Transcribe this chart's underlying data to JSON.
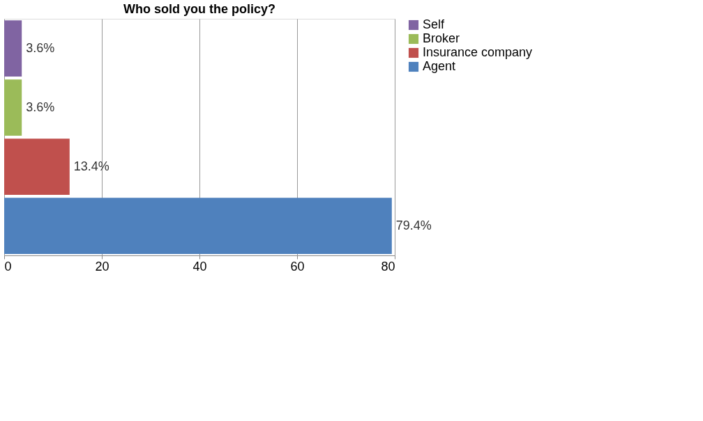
{
  "chart_data": {
    "type": "bar",
    "orientation": "horizontal",
    "title": "Who sold you the policy?",
    "categories": [
      null,
      null,
      null,
      null
    ],
    "series": [
      {
        "name": "Self",
        "color": "#8064a2",
        "values": [
          3.6,
          null,
          null,
          null
        ],
        "value_labels": [
          "3.6%",
          null,
          null,
          null
        ]
      },
      {
        "name": "Broker",
        "color": "#9bbb59",
        "values": [
          null,
          3.6,
          null,
          null
        ],
        "value_labels": [
          null,
          "3.6%",
          null,
          null
        ]
      },
      {
        "name": "Insurance company",
        "color": "#c0504d",
        "values": [
          null,
          null,
          13.4,
          null
        ],
        "value_labels": [
          null,
          null,
          "13.4%",
          null
        ]
      },
      {
        "name": "Agent",
        "color": "#4f81bd",
        "values": [
          null,
          null,
          null,
          79.4
        ],
        "value_labels": [
          null,
          null,
          null,
          "79.4%"
        ]
      }
    ],
    "xlim": [
      0,
      80
    ],
    "xticks": [
      0,
      20,
      40,
      60,
      80
    ],
    "grid": "x",
    "legend": "right",
    "tick_labels": "x"
  }
}
